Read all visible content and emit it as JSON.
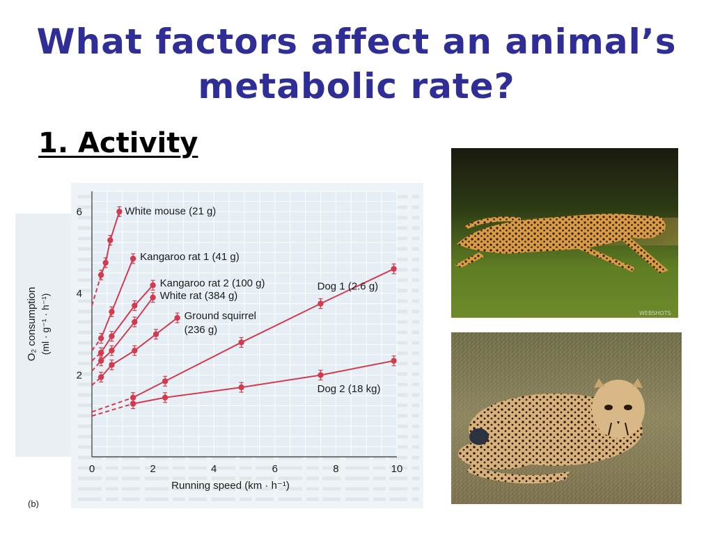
{
  "slide": {
    "title_line1": "What factors affect an animal’s",
    "title_line2": "metabolic rate?",
    "subheading": "1. Activity",
    "title_color": "#2e2e96",
    "panel_label": "(b)",
    "photo_watermark": "WEBSHOTS"
  },
  "chart_data": {
    "type": "line",
    "xlabel": "Running speed (km · h⁻¹)",
    "ylabel_line1": "O₂ consumption",
    "ylabel_line2": "(ml · g⁻¹ · h⁻¹)",
    "xlim": [
      0,
      10
    ],
    "ylim": [
      0,
      6.5
    ],
    "xticks": [
      0,
      2,
      4,
      6,
      8,
      10
    ],
    "yticks": [
      2,
      4,
      6
    ],
    "grid": true,
    "line_color": "#d23a4e",
    "series": [
      {
        "name": "White mouse (21 g)",
        "x": [
          0.3,
          0.45,
          0.6,
          0.9
        ],
        "y": [
          4.45,
          4.75,
          5.3,
          6.0
        ],
        "extrapolated_to_zero": 3.7
      },
      {
        "name": "Kangaroo rat 1 (41 g)",
        "x": [
          0.3,
          0.65,
          1.35
        ],
        "y": [
          2.9,
          3.55,
          4.85
        ],
        "extrapolated_to_zero": 2.6
      },
      {
        "name": "Kangaroo rat 2 (100 g)",
        "x": [
          0.3,
          0.65,
          1.4,
          2.0
        ],
        "y": [
          2.55,
          2.95,
          3.7,
          4.2
        ],
        "extrapolated_to_zero": 2.35
      },
      {
        "name": "White rat (384 g)",
        "x": [
          0.3,
          0.65,
          1.4,
          2.0
        ],
        "y": [
          2.35,
          2.6,
          3.3,
          3.9
        ],
        "extrapolated_to_zero": 2.1
      },
      {
        "name": "Ground squirrel\n(236 g)",
        "x": [
          0.3,
          0.65,
          1.4,
          2.1,
          2.8
        ],
        "y": [
          1.95,
          2.25,
          2.6,
          3.0,
          3.4
        ],
        "extrapolated_to_zero": 1.75
      },
      {
        "name": "Dog 1 (2.6 g)",
        "x": [
          1.35,
          2.4,
          4.9,
          7.5,
          9.9
        ],
        "y": [
          1.45,
          1.85,
          2.8,
          3.75,
          4.6
        ],
        "extrapolated_to_zero": 1.1
      },
      {
        "name": "Dog 2 (18 kg)",
        "x": [
          1.35,
          2.4,
          4.9,
          7.5,
          9.9
        ],
        "y": [
          1.3,
          1.45,
          1.7,
          2.0,
          2.35
        ],
        "extrapolated_to_zero": 1.0
      }
    ]
  }
}
